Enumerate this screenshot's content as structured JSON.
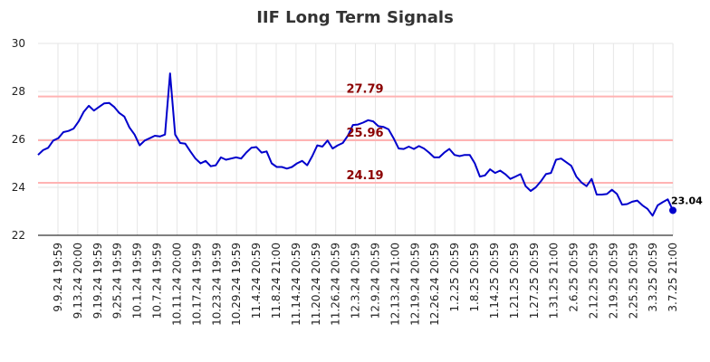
{
  "chart_data": {
    "type": "line",
    "title": "IIF Long Term Signals",
    "xlabel": "",
    "ylabel": "",
    "ylim": [
      22,
      30
    ],
    "y_ticks": [
      22,
      24,
      26,
      28,
      30
    ],
    "grid": true,
    "x_tick_labels": [
      "9.9.24 19:59",
      "9.13.24 20:00",
      "9.19.24 19:59",
      "9.25.24 19:59",
      "10.1.24 19:59",
      "10.7.24 19:59",
      "10.11.24 20:00",
      "10.17.24 19:59",
      "10.23.24 19:59",
      "10.29.24 19:59",
      "11.4.24 20:59",
      "11.8.24 21:00",
      "11.14.24 20:59",
      "11.20.24 20:59",
      "11.26.24 20:59",
      "12.3.24 20:59",
      "12.9.24 20:59",
      "12.13.24 21:00",
      "12.19.24 20:59",
      "12.26.24 20:59",
      "1.2.25 20:59",
      "1.8.25 20:59",
      "1.14.25 20:59",
      "1.21.25 20:59",
      "1.27.25 20:59",
      "1.31.25 21:00",
      "2.6.25 20:59",
      "2.12.25 20:59",
      "2.19.25 20:59",
      "2.25.25 20:59",
      "3.3.25 20:59",
      "3.7.25 21:00"
    ],
    "reference_lines": [
      {
        "value": 27.79,
        "label": "27.79",
        "color": "#ffb3b3",
        "label_color": "#8b0000"
      },
      {
        "value": 25.96,
        "label": "25.96",
        "color": "#ffb3b3",
        "label_color": "#8b0000"
      },
      {
        "value": 24.19,
        "label": "24.19",
        "color": "#ffb3b3",
        "label_color": "#8b0000"
      }
    ],
    "series": [
      {
        "color": "#0000cc",
        "values": [
          25.35,
          25.55,
          25.65,
          25.95,
          26.05,
          26.3,
          26.35,
          26.45,
          26.75,
          27.15,
          27.4,
          27.2,
          27.35,
          27.5,
          27.52,
          27.35,
          27.1,
          26.95,
          26.5,
          26.2,
          25.75,
          25.95,
          26.05,
          26.15,
          26.12,
          26.2,
          28.75,
          26.2,
          25.85,
          25.82,
          25.5,
          25.2,
          25.0,
          25.1,
          24.88,
          24.92,
          25.25,
          25.15,
          25.2,
          25.25,
          25.2,
          25.45,
          25.65,
          25.68,
          25.45,
          25.5,
          25.0,
          24.85,
          24.85,
          24.78,
          24.85,
          25.0,
          25.1,
          24.92,
          25.3,
          25.75,
          25.7,
          25.95,
          25.62,
          25.75,
          25.85,
          26.15,
          26.6,
          26.62,
          26.7,
          26.8,
          26.75,
          26.55,
          26.52,
          26.42,
          26.05,
          25.62,
          25.6,
          25.7,
          25.6,
          25.72,
          25.62,
          25.45,
          25.25,
          25.25,
          25.45,
          25.6,
          25.35,
          25.3,
          25.35,
          25.35,
          25.0,
          24.45,
          24.5,
          24.75,
          24.6,
          24.7,
          24.55,
          24.35,
          24.45,
          24.55,
          24.05,
          23.85,
          24.0,
          24.25,
          24.55,
          24.6,
          25.15,
          25.2,
          25.05,
          24.9,
          24.45,
          24.2,
          24.05,
          24.35,
          23.7,
          23.7,
          23.72,
          23.9,
          23.72,
          23.28,
          23.3,
          23.4,
          23.45,
          23.25,
          23.1,
          22.82,
          23.25,
          23.38,
          23.5,
          23.04
        ]
      }
    ],
    "last_point": {
      "value": 23.04,
      "label": "23.04",
      "color": "#0000cc"
    }
  }
}
